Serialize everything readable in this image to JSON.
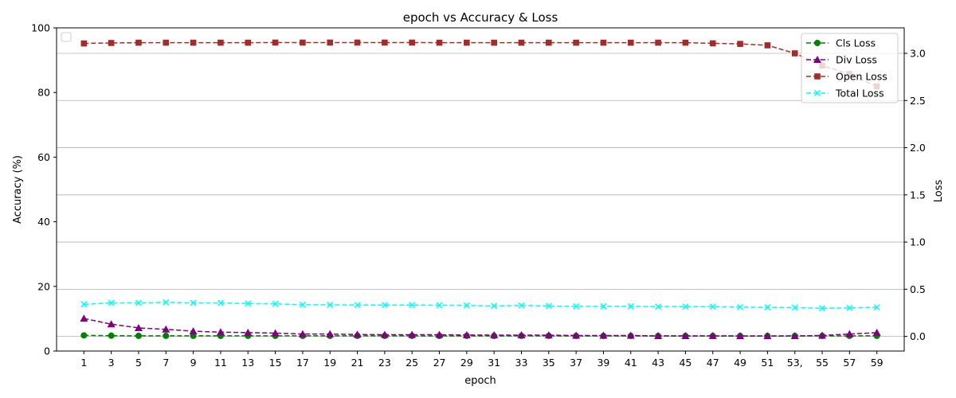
{
  "chart_data": {
    "type": "line",
    "title": "epoch vs Accuracy & Loss",
    "xlabel": "epoch",
    "ylabel_left": "Accuracy (%)",
    "ylabel_right": "Loss",
    "x": [
      1,
      3,
      5,
      7,
      9,
      11,
      13,
      15,
      17,
      19,
      21,
      23,
      25,
      27,
      29,
      31,
      33,
      35,
      37,
      39,
      41,
      43,
      45,
      47,
      49,
      51,
      53,
      55,
      57,
      59
    ],
    "x_ticks": [
      "1",
      "3",
      "5",
      "7",
      "9",
      "11",
      "13",
      "15",
      "17",
      "19",
      "21",
      "23",
      "25",
      "27",
      "29",
      "31",
      "33",
      "35",
      "37",
      "39",
      "41",
      "43",
      "45",
      "47",
      "49",
      "51",
      "53,",
      "55",
      "57",
      "59"
    ],
    "y_left_ticks": [
      "0",
      "20",
      "40",
      "60",
      "80",
      "100"
    ],
    "y_left_lim": [
      0,
      100
    ],
    "y_right_ticks": [
      "0.0",
      "0.5",
      "1.0",
      "1.5",
      "2.0",
      "2.5",
      "3.0"
    ],
    "y_right_lim": [
      -0.155,
      3.27
    ],
    "grid": "horizontal, right axis",
    "legend_position": "top-right",
    "empty_legend_position": "top-left",
    "series": [
      {
        "name": "Cls Loss",
        "axis": "right",
        "color": "#008000",
        "marker": "circle",
        "values": [
          0.011,
          0.008,
          0.006,
          0.006,
          0.006,
          0.006,
          0.006,
          0.006,
          0.006,
          0.006,
          0.006,
          0.006,
          0.006,
          0.005,
          0.006,
          0.005,
          0.006,
          0.006,
          0.005,
          0.005,
          0.005,
          0.005,
          0.005,
          0.005,
          0.005,
          0.005,
          0.005,
          0.005,
          0.006,
          0.006
        ]
      },
      {
        "name": "Div Loss",
        "axis": "right",
        "color": "#800080",
        "marker": "triangle",
        "values": [
          0.19,
          0.13,
          0.09,
          0.075,
          0.055,
          0.045,
          0.04,
          0.035,
          0.025,
          0.025,
          0.02,
          0.018,
          0.018,
          0.018,
          0.015,
          0.014,
          0.014,
          0.013,
          0.01,
          0.01,
          0.01,
          0.005,
          0.005,
          0.006,
          0.004,
          0.004,
          0.005,
          0.01,
          0.025,
          0.04
        ]
      },
      {
        "name": "Open Loss",
        "axis": "right",
        "color": "#a52a2a",
        "marker": "square",
        "values": [
          3.105,
          3.11,
          3.113,
          3.113,
          3.113,
          3.113,
          3.113,
          3.114,
          3.114,
          3.114,
          3.114,
          3.114,
          3.114,
          3.113,
          3.113,
          3.113,
          3.113,
          3.113,
          3.113,
          3.113,
          3.113,
          3.113,
          3.113,
          3.106,
          3.1,
          3.085,
          3.0,
          2.87,
          2.78,
          2.65
        ]
      },
      {
        "name": "Total Loss",
        "axis": "right",
        "color": "#00ffff",
        "marker": "x",
        "values": [
          0.34,
          0.355,
          0.355,
          0.36,
          0.355,
          0.355,
          0.348,
          0.345,
          0.335,
          0.335,
          0.332,
          0.332,
          0.332,
          0.33,
          0.328,
          0.322,
          0.328,
          0.322,
          0.318,
          0.318,
          0.318,
          0.315,
          0.315,
          0.315,
          0.31,
          0.308,
          0.305,
          0.298,
          0.302,
          0.308
        ]
      }
    ]
  }
}
